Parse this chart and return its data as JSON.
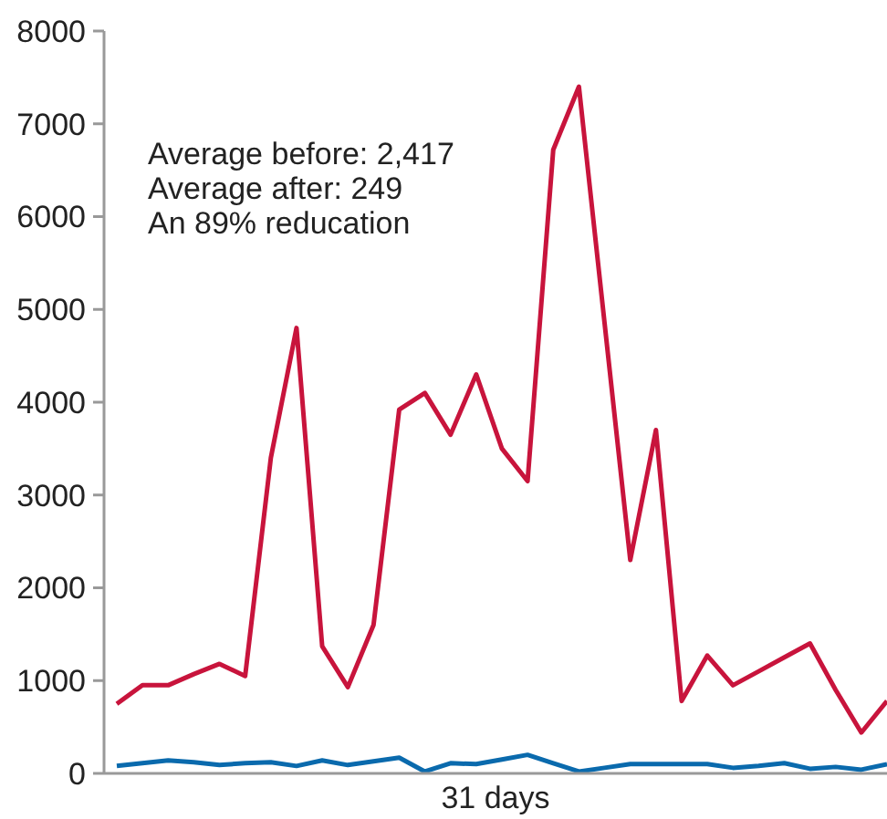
{
  "chart_data": {
    "type": "line",
    "xlabel": "31 days",
    "categories": [
      null,
      null,
      null,
      null,
      null,
      null,
      null,
      null,
      null,
      null,
      null,
      null,
      null,
      null,
      null,
      null,
      null,
      null,
      null,
      null,
      null,
      null,
      null,
      null,
      null,
      null,
      null,
      null,
      null,
      null,
      null
    ],
    "ylim": [
      0,
      8000
    ],
    "yticks": [
      0,
      1000,
      2000,
      3000,
      4000,
      5000,
      6000,
      7000,
      8000
    ],
    "grid": false,
    "marker": "none",
    "line_style": "solid",
    "annotations": [
      "Average before: 2,417",
      "Average after: 249",
      "An 89% reducation"
    ],
    "series": [
      {
        "color": "#c8143c",
        "values": [
          750,
          950,
          950,
          1070,
          1180,
          1050,
          3400,
          4800,
          1370,
          930,
          1600,
          3920,
          4100,
          3650,
          4300,
          3500,
          3150,
          6720,
          7400,
          4850,
          2300,
          3700,
          780,
          1270,
          950,
          1100,
          1250,
          1400,
          900,
          440,
          780
        ]
      },
      {
        "color": "#0a6aad",
        "values": [
          80,
          110,
          140,
          120,
          90,
          110,
          120,
          80,
          140,
          90,
          130,
          170,
          20,
          110,
          100,
          150,
          200,
          110,
          20,
          60,
          100,
          100,
          100,
          100,
          60,
          80,
          110,
          50,
          70,
          40,
          100
        ]
      }
    ]
  }
}
